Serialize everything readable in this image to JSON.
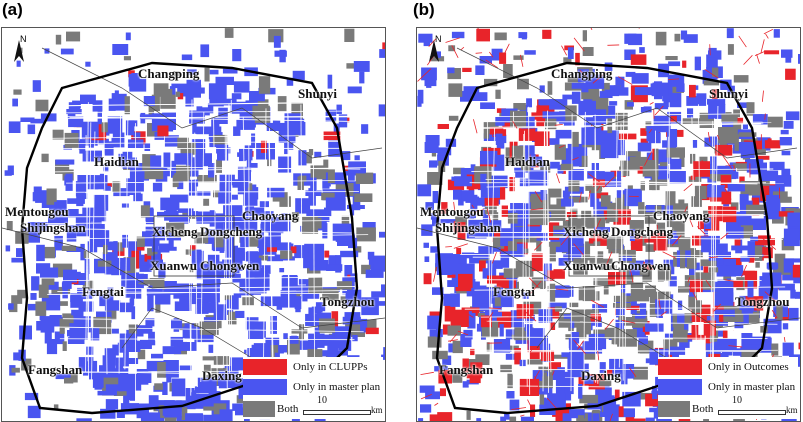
{
  "panels": [
    {
      "tag": "(a)",
      "north_label": "N",
      "places": [
        "Changping",
        "Shunyi",
        "Haidian",
        "Mentougou",
        "Shijingshan",
        "Xicheng",
        "Dongcheng",
        "Chaoyang",
        "Xuanwu",
        "Chongwen",
        "Fengtai",
        "Tongzhou",
        "Fangshan",
        "Daxing"
      ],
      "legend": {
        "items": [
          {
            "label": "Only in CLUPPs",
            "color": "#e8242a"
          },
          {
            "label": "Only in master plan",
            "color": "#4a55f0"
          },
          {
            "label": "Both",
            "color": "#7a7a7a"
          }
        ],
        "scale_value": "10",
        "scale_unit": "km"
      }
    },
    {
      "tag": "(b)",
      "north_label": "N",
      "places": [
        "Changping",
        "Shunyi",
        "Haidian",
        "Mentougou",
        "Shijingshan",
        "Xicheng",
        "Dongcheng",
        "Chaoyang",
        "Xuanwu",
        "Chongwen",
        "Fengtai",
        "Tongzhou",
        "Fangshan",
        "Daxing"
      ],
      "legend": {
        "items": [
          {
            "label": "Only in Outcomes",
            "color": "#e8242a"
          },
          {
            "label": "Only in master plan",
            "color": "#4a55f0"
          },
          {
            "label": "Both",
            "color": "#7a7a7a"
          }
        ],
        "scale_value": "10",
        "scale_unit": "km"
      }
    }
  ]
}
